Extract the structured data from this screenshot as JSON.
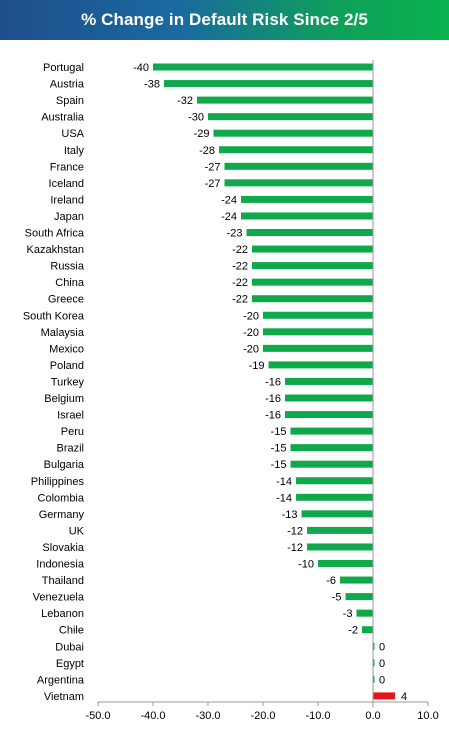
{
  "chart_data": {
    "type": "bar",
    "orientation": "horizontal",
    "title": "% Change in Default Risk Since 2/5",
    "xlabel": "",
    "ylabel": "",
    "xlim": [
      -50,
      10
    ],
    "x_ticks": [
      "-50.0",
      "-40.0",
      "-30.0",
      "-20.0",
      "-10.0",
      "0.0",
      "10.0"
    ],
    "grid": false,
    "legend": "none",
    "colors": {
      "negative": "#0fa84b",
      "positive": "#e8141b",
      "title_start": "#1f4e8c",
      "title_end": "#09b34f"
    },
    "categories": [
      "Portugal",
      "Austria",
      "Spain",
      "Australia",
      "USA",
      "Italy",
      "France",
      "Iceland",
      "Ireland",
      "Japan",
      "South Africa",
      "Kazakhstan",
      "Russia",
      "China",
      "Greece",
      "South Korea",
      "Malaysia",
      "Mexico",
      "Poland",
      "Turkey",
      "Belgium",
      "Israel",
      "Peru",
      "Brazil",
      "Bulgaria",
      "Philippines",
      "Colombia",
      "Germany",
      "UK",
      "Slovakia",
      "Indonesia",
      "Thailand",
      "Venezuela",
      "Lebanon",
      "Chile",
      "Dubai",
      "Egypt",
      "Argentina",
      "Vietnam"
    ],
    "values": [
      -40,
      -38,
      -32,
      -30,
      -29,
      -28,
      -27,
      -27,
      -24,
      -24,
      -23,
      -22,
      -22,
      -22,
      -22,
      -20,
      -20,
      -20,
      -19,
      -16,
      -16,
      -16,
      -15,
      -15,
      -15,
      -14,
      -14,
      -13,
      -12,
      -12,
      -10,
      -6,
      -5,
      -3,
      -2,
      0,
      0,
      0,
      4
    ],
    "data_labels": [
      "-40",
      "-38",
      "-32",
      "-30",
      "-29",
      "-28",
      "-27",
      "-27",
      "-24",
      "-24",
      "-23",
      "-22",
      "-22",
      "-22",
      "-22",
      "-20",
      "-20",
      "-20",
      "-19",
      "-16",
      "-16",
      "-16",
      "-15",
      "-15",
      "-15",
      "-14",
      "-14",
      "-13",
      "-12",
      "-12",
      "-10",
      "-6",
      "-5",
      "-3",
      "-2",
      "0",
      "0",
      "0",
      "4"
    ]
  }
}
